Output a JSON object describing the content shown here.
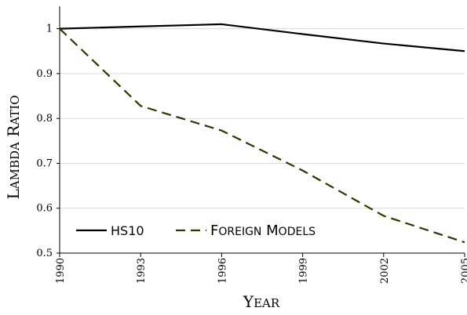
{
  "chart_data": {
    "type": "line",
    "title": "",
    "xlabel": "Year",
    "ylabel": "Lambda Ratio",
    "x": [
      1990,
      1993,
      1996,
      1999,
      2002,
      2005
    ],
    "xticks": [
      "1990",
      "1993",
      "1996",
      "1999",
      "2002",
      "2005"
    ],
    "yticks": [
      "0.5",
      "0.6",
      "0.7",
      "0.8",
      "0.9",
      "1"
    ],
    "ylim": [
      0.5,
      1.05
    ],
    "xlim": [
      1990,
      2005
    ],
    "grid": "horizontal",
    "legend_position": "bottom-left",
    "series": [
      {
        "name": "HS10",
        "values": [
          1.0,
          1.005,
          1.01,
          0.988,
          0.967,
          0.95
        ],
        "color": "#000000",
        "style": "solid"
      },
      {
        "name": "Foreign Models",
        "values": [
          1.0,
          0.828,
          0.773,
          0.684,
          0.583,
          0.524
        ],
        "color": "#333300",
        "style": "dashed"
      }
    ]
  }
}
